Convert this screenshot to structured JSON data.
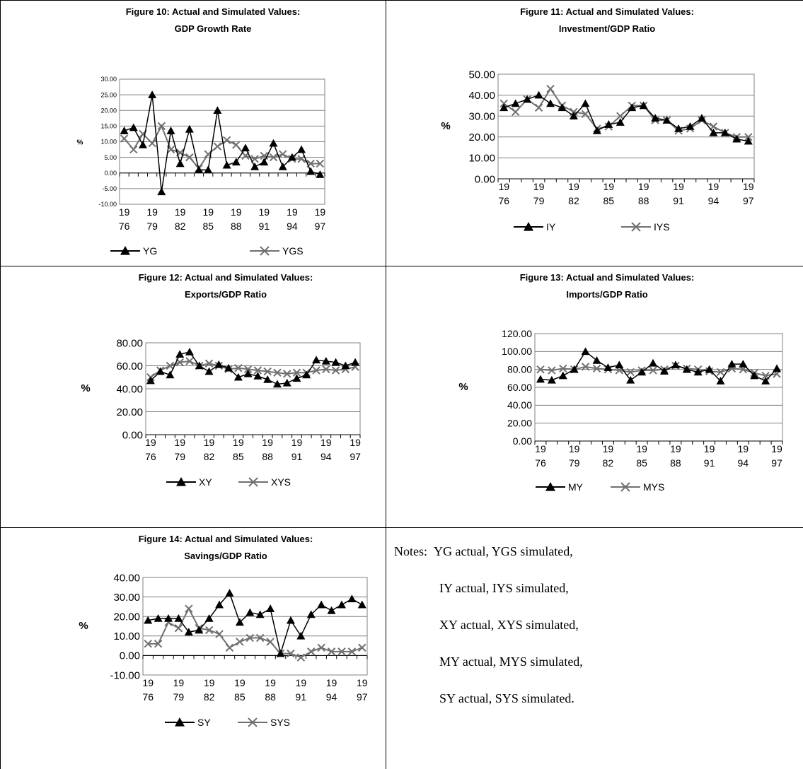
{
  "chart_data": [
    {
      "type": "line",
      "title": "Figure 10: Actual and Simulated Values:",
      "subtitle": "GDP Growth Rate",
      "ylabel": "%",
      "ylim": [
        -10,
        30
      ],
      "yticks": [
        "30.00",
        "25.00",
        "20.00",
        "15.00",
        "10.00",
        "5.00",
        "0.00",
        "-5.00",
        "-10.00"
      ],
      "x": [
        1976,
        1977,
        1978,
        1979,
        1980,
        1981,
        1982,
        1983,
        1984,
        1985,
        1986,
        1987,
        1988,
        1989,
        1990,
        1991,
        1992,
        1993,
        1994,
        1995,
        1996,
        1997
      ],
      "xtick_top": [
        "19",
        "19",
        "19",
        "19",
        "19",
        "19",
        "19",
        "19"
      ],
      "xtick_bottom": [
        "76",
        "79",
        "82",
        "85",
        "88",
        "91",
        "94",
        "97"
      ],
      "grid": true,
      "legend": "bottom",
      "series": [
        {
          "name": "YG",
          "marker": "triangle",
          "values": [
            13.5,
            14.5,
            9,
            25,
            -6,
            13.5,
            3,
            14,
            1,
            1,
            20,
            2.5,
            3.5,
            8,
            2,
            3.5,
            9.5,
            2,
            5,
            7.5,
            0.5,
            -0.5
          ]
        },
        {
          "name": "YGS",
          "marker": "x",
          "values": [
            11,
            7.5,
            12.5,
            9.5,
            15,
            7.5,
            6.5,
            5,
            1.5,
            6,
            8.5,
            10.5,
            9,
            5.5,
            4.5,
            5.5,
            5,
            6,
            4.5,
            4.5,
            3,
            3
          ]
        }
      ]
    },
    {
      "type": "line",
      "title": "Figure 11: Actual and Simulated Values:",
      "subtitle": "Investment/GDP Ratio",
      "ylabel": "%",
      "ylim": [
        0,
        50
      ],
      "yticks": [
        "50.00",
        "40.00",
        "30.00",
        "20.00",
        "10.00",
        "0.00"
      ],
      "x": [
        1976,
        1977,
        1978,
        1979,
        1980,
        1981,
        1982,
        1983,
        1984,
        1985,
        1986,
        1987,
        1988,
        1989,
        1990,
        1991,
        1992,
        1993,
        1994,
        1995,
        1996,
        1997
      ],
      "xtick_top": [
        "19",
        "19",
        "19",
        "19",
        "19",
        "19",
        "19",
        "19"
      ],
      "xtick_bottom": [
        "76",
        "79",
        "82",
        "85",
        "88",
        "91",
        "94",
        "97"
      ],
      "grid": true,
      "legend": "bottom",
      "series": [
        {
          "name": "IY",
          "marker": "triangle",
          "values": [
            34,
            36,
            38,
            40,
            36,
            34,
            30,
            36,
            23,
            26,
            27,
            34,
            35,
            29,
            28,
            24,
            25,
            29,
            22,
            22,
            19,
            18
          ]
        },
        {
          "name": "IYS",
          "marker": "x",
          "values": [
            36,
            32,
            38,
            34,
            43,
            35,
            32,
            31,
            24,
            25,
            30,
            35,
            35,
            28,
            28,
            23,
            24,
            28,
            25,
            22,
            20,
            20
          ]
        }
      ]
    },
    {
      "type": "line",
      "title": "Figure 12: Actual and Simulated Values:",
      "subtitle": "Exports/GDP Ratio",
      "ylabel": "%",
      "ylim": [
        0,
        80
      ],
      "yticks": [
        "80.00",
        "60.00",
        "40.00",
        "20.00",
        "0.00"
      ],
      "x": [
        1976,
        1977,
        1978,
        1979,
        1980,
        1981,
        1982,
        1983,
        1984,
        1985,
        1986,
        1987,
        1988,
        1989,
        1990,
        1991,
        1992,
        1993,
        1994,
        1995,
        1996,
        1997
      ],
      "xtick_top": [
        "19",
        "19",
        "19",
        "19",
        "19",
        "19",
        "19",
        "19"
      ],
      "xtick_bottom": [
        "76",
        "79",
        "82",
        "85",
        "88",
        "91",
        "94",
        "97"
      ],
      "grid": true,
      "legend": "bottom",
      "series": [
        {
          "name": "XY",
          "marker": "triangle",
          "values": [
            47,
            55,
            52,
            70,
            72,
            60,
            55,
            61,
            58,
            50,
            53,
            51,
            48,
            44,
            45,
            49,
            52,
            65,
            64,
            63,
            60,
            63
          ]
        },
        {
          "name": "XYS",
          "marker": "x",
          "values": [
            50,
            56,
            60,
            63,
            64,
            60,
            62,
            60,
            57,
            58,
            57,
            56,
            55,
            54,
            53,
            54,
            54,
            56,
            57,
            56,
            57,
            59
          ]
        }
      ]
    },
    {
      "type": "line",
      "title": "Figure 13: Actual and Simulated Values:",
      "subtitle": "Imports/GDP Ratio",
      "ylabel": "%",
      "ylim": [
        0,
        120
      ],
      "yticks": [
        "120.00",
        "100.00",
        "80.00",
        "60.00",
        "40.00",
        "20.00",
        "0.00"
      ],
      "x": [
        1976,
        1977,
        1978,
        1979,
        1980,
        1981,
        1982,
        1983,
        1984,
        1985,
        1986,
        1987,
        1988,
        1989,
        1990,
        1991,
        1992,
        1993,
        1994,
        1995,
        1996,
        1997
      ],
      "xtick_top": [
        "19",
        "19",
        "19",
        "19",
        "19",
        "19",
        "19",
        "19"
      ],
      "xtick_bottom": [
        "76",
        "79",
        "82",
        "85",
        "88",
        "91",
        "94",
        "97"
      ],
      "grid": true,
      "legend": "bottom",
      "series": [
        {
          "name": "MY",
          "marker": "triangle",
          "values": [
            69,
            68,
            73,
            80,
            100,
            90,
            82,
            85,
            68,
            77,
            87,
            78,
            85,
            80,
            77,
            80,
            67,
            86,
            86,
            73,
            67,
            81
          ]
        },
        {
          "name": "MYS",
          "marker": "x",
          "values": [
            80,
            79,
            81,
            80,
            83,
            81,
            80,
            79,
            77,
            79,
            79,
            80,
            84,
            81,
            80,
            78,
            77,
            81,
            80,
            76,
            73,
            75
          ]
        }
      ]
    },
    {
      "type": "line",
      "title": "Figure 14: Actual and Simulated Values:",
      "subtitle": "Savings/GDP Ratio",
      "ylabel": "%",
      "ylim": [
        -10,
        40
      ],
      "yticks": [
        "40.00",
        "30.00",
        "20.00",
        "10.00",
        "0.00",
        "-10.00"
      ],
      "x": [
        1976,
        1977,
        1978,
        1979,
        1980,
        1981,
        1982,
        1983,
        1984,
        1985,
        1986,
        1987,
        1988,
        1989,
        1990,
        1991,
        1992,
        1993,
        1994,
        1995,
        1996,
        1997
      ],
      "xtick_top": [
        "19",
        "19",
        "19",
        "19",
        "19",
        "19",
        "19",
        "19"
      ],
      "xtick_bottom": [
        "76",
        "79",
        "82",
        "85",
        "88",
        "91",
        "94",
        "97"
      ],
      "grid": true,
      "legend": "bottom",
      "series": [
        {
          "name": "SY",
          "marker": "triangle",
          "values": [
            18,
            19,
            19,
            19,
            12,
            13,
            19,
            26,
            32,
            17,
            22,
            21,
            24,
            1,
            18,
            10,
            21,
            26,
            23,
            26,
            29,
            26
          ]
        },
        {
          "name": "SYS",
          "marker": "x",
          "values": [
            6,
            6,
            17,
            14,
            24,
            14,
            13,
            11,
            4,
            7,
            9,
            9,
            7,
            1,
            1,
            -1,
            2,
            4,
            2,
            2,
            2,
            4
          ]
        }
      ]
    }
  ],
  "notes": {
    "prefix": "Notes:",
    "lines": [
      "YG actual, YGS simulated,",
      "IY actual, IYS simulated,",
      "XY actual, XYS simulated,",
      "MY actual, MYS simulated,",
      "SY actual, SYS simulated."
    ]
  }
}
